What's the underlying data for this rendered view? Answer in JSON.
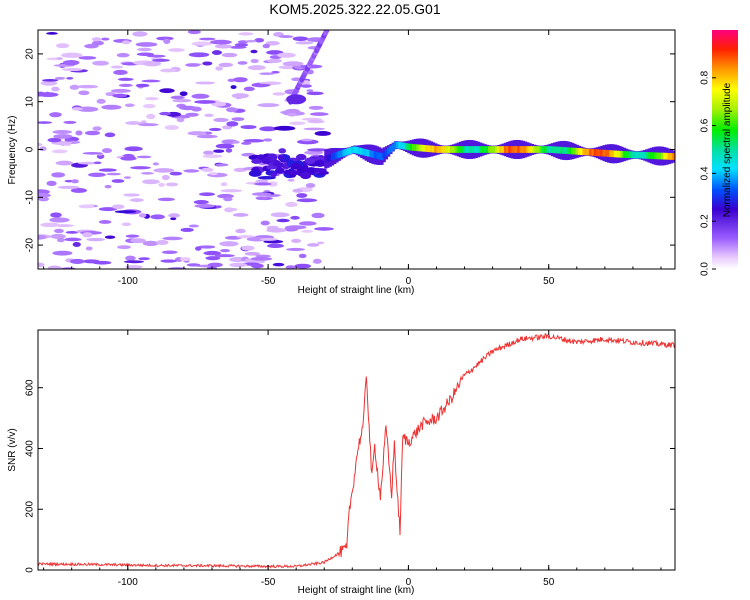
{
  "title": "KOM5.2025.322.22.05.G01",
  "chart_data": [
    {
      "type": "heatmap",
      "xlabel": "Height of straight line (km)",
      "ylabel": "Frequency (Hz)",
      "xlim": [
        -132,
        95
      ],
      "ylim": [
        -25,
        25
      ],
      "xticks": [
        -100,
        -50,
        0,
        50
      ],
      "yticks": [
        -20,
        -10,
        0,
        10,
        20
      ],
      "colorbar": {
        "label": "Normalized spectral amplitude",
        "range": [
          0,
          1
        ],
        "ticks": [
          0.0,
          0.2,
          0.4,
          0.6,
          0.8
        ]
      },
      "features": [
        {
          "name": "noise-floor",
          "x_range": [
            -132,
            -30
          ],
          "freq_range": [
            -25,
            25
          ],
          "amplitude": 0.08
        },
        {
          "name": "signal-onset",
          "x_range": [
            -55,
            -30
          ],
          "freq_center": -3.5,
          "amplitude": 0.2
        },
        {
          "name": "branch",
          "x_range": [
            -42,
            -29
          ],
          "freq_range": [
            10,
            25
          ],
          "amplitude": 0.1
        },
        {
          "name": "carrier",
          "points": [
            [
              -30,
              -2
            ],
            [
              -20,
              0
            ],
            [
              -10,
              -1.5
            ],
            [
              -5,
              1
            ],
            [
              0,
              0.5
            ],
            [
              10,
              0
            ],
            [
              25,
              0
            ],
            [
              50,
              0
            ],
            [
              75,
              -1
            ],
            [
              95,
              -1.5
            ]
          ],
          "amplitude_max": 0.95
        }
      ]
    },
    {
      "type": "line",
      "xlabel": "Height of straight line (km)",
      "ylabel": "SNR (v/v)",
      "xlim": [
        -132,
        95
      ],
      "ylim": [
        0,
        790
      ],
      "xticks": [
        -100,
        -50,
        0,
        50
      ],
      "yticks": [
        0,
        200,
        400,
        600
      ],
      "color": "#ee3333",
      "series": [
        {
          "name": "SNR",
          "x": [
            -132,
            -110,
            -90,
            -70,
            -50,
            -40,
            -30,
            -25,
            -22,
            -21,
            -20,
            -18,
            -16,
            -15,
            -13,
            -12,
            -10,
            -8,
            -6,
            -5,
            -4,
            -3,
            -2,
            0,
            5,
            10,
            15,
            20,
            25,
            30,
            40,
            50,
            60,
            70,
            80,
            95
          ],
          "y": [
            20,
            18,
            15,
            14,
            12,
            12,
            25,
            55,
            70,
            200,
            260,
            400,
            480,
            650,
            300,
            410,
            240,
            470,
            250,
            420,
            250,
            130,
            440,
            420,
            480,
            500,
            560,
            640,
            680,
            720,
            760,
            770,
            750,
            760,
            750,
            740
          ]
        }
      ]
    }
  ]
}
